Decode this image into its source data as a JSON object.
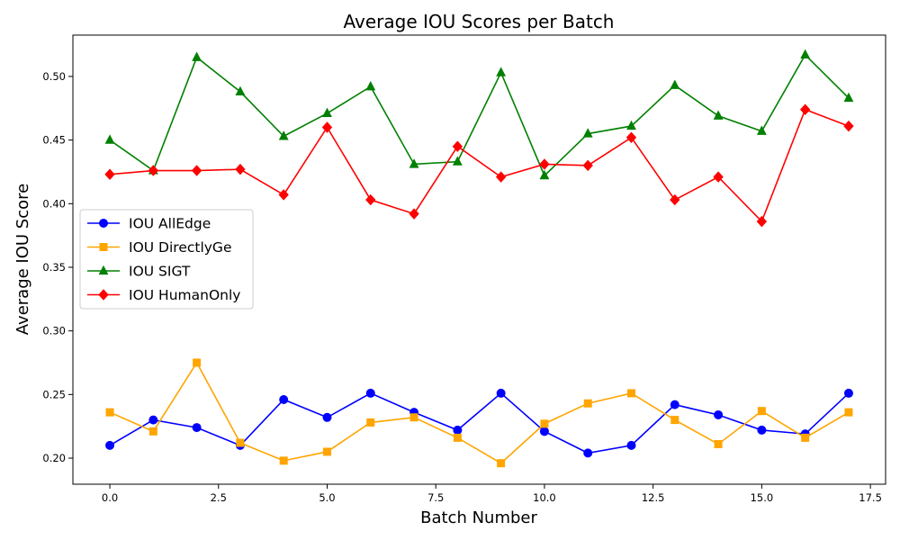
{
  "chart_data": {
    "type": "line",
    "title": "Average IOU Scores per Batch",
    "xlabel": "Batch Number",
    "ylabel": "Average IOU Score",
    "xlim": [
      -0.85,
      17.85
    ],
    "ylim": [
      0.1795,
      0.5325
    ],
    "xticks": [
      0.0,
      2.5,
      5.0,
      7.5,
      10.0,
      12.5,
      15.0,
      17.5
    ],
    "xtick_labels": [
      "0.0",
      "2.5",
      "5.0",
      "7.5",
      "10.0",
      "12.5",
      "15.0",
      "17.5"
    ],
    "yticks": [
      0.2,
      0.25,
      0.3,
      0.35,
      0.4,
      0.45,
      0.5
    ],
    "ytick_labels": [
      "0.20",
      "0.25",
      "0.30",
      "0.35",
      "0.40",
      "0.45",
      "0.50"
    ],
    "grid": false,
    "legend_position": "center-left",
    "x": [
      0,
      1,
      2,
      3,
      4,
      5,
      6,
      7,
      8,
      9,
      10,
      11,
      12,
      13,
      14,
      15,
      16,
      17
    ],
    "series": [
      {
        "name": "IOU AllEdge",
        "color": "#0000ff",
        "marker": "circle",
        "values": [
          0.21,
          0.23,
          0.224,
          0.21,
          0.246,
          0.232,
          0.251,
          0.236,
          0.222,
          0.251,
          0.221,
          0.204,
          0.21,
          0.242,
          0.234,
          0.222,
          0.219,
          0.251
        ]
      },
      {
        "name": "IOU DirectlyGe",
        "color": "#ffa500",
        "marker": "square",
        "values": [
          0.236,
          0.221,
          0.275,
          0.212,
          0.198,
          0.205,
          0.228,
          0.232,
          0.216,
          0.196,
          0.227,
          0.243,
          0.251,
          0.23,
          0.211,
          0.237,
          0.216,
          0.236
        ]
      },
      {
        "name": "IOU SIGT",
        "color": "#008000",
        "marker": "triangle",
        "values": [
          0.45,
          0.426,
          0.515,
          0.488,
          0.453,
          0.471,
          0.492,
          0.431,
          0.433,
          0.503,
          0.422,
          0.455,
          0.461,
          0.493,
          0.469,
          0.457,
          0.517,
          0.483
        ]
      },
      {
        "name": "IOU HumanOnly",
        "color": "#ff0000",
        "marker": "diamond",
        "values": [
          0.423,
          0.426,
          0.426,
          0.427,
          0.407,
          0.46,
          0.403,
          0.392,
          0.445,
          0.421,
          0.431,
          0.43,
          0.452,
          0.403,
          0.421,
          0.386,
          0.474,
          0.461
        ]
      }
    ]
  }
}
